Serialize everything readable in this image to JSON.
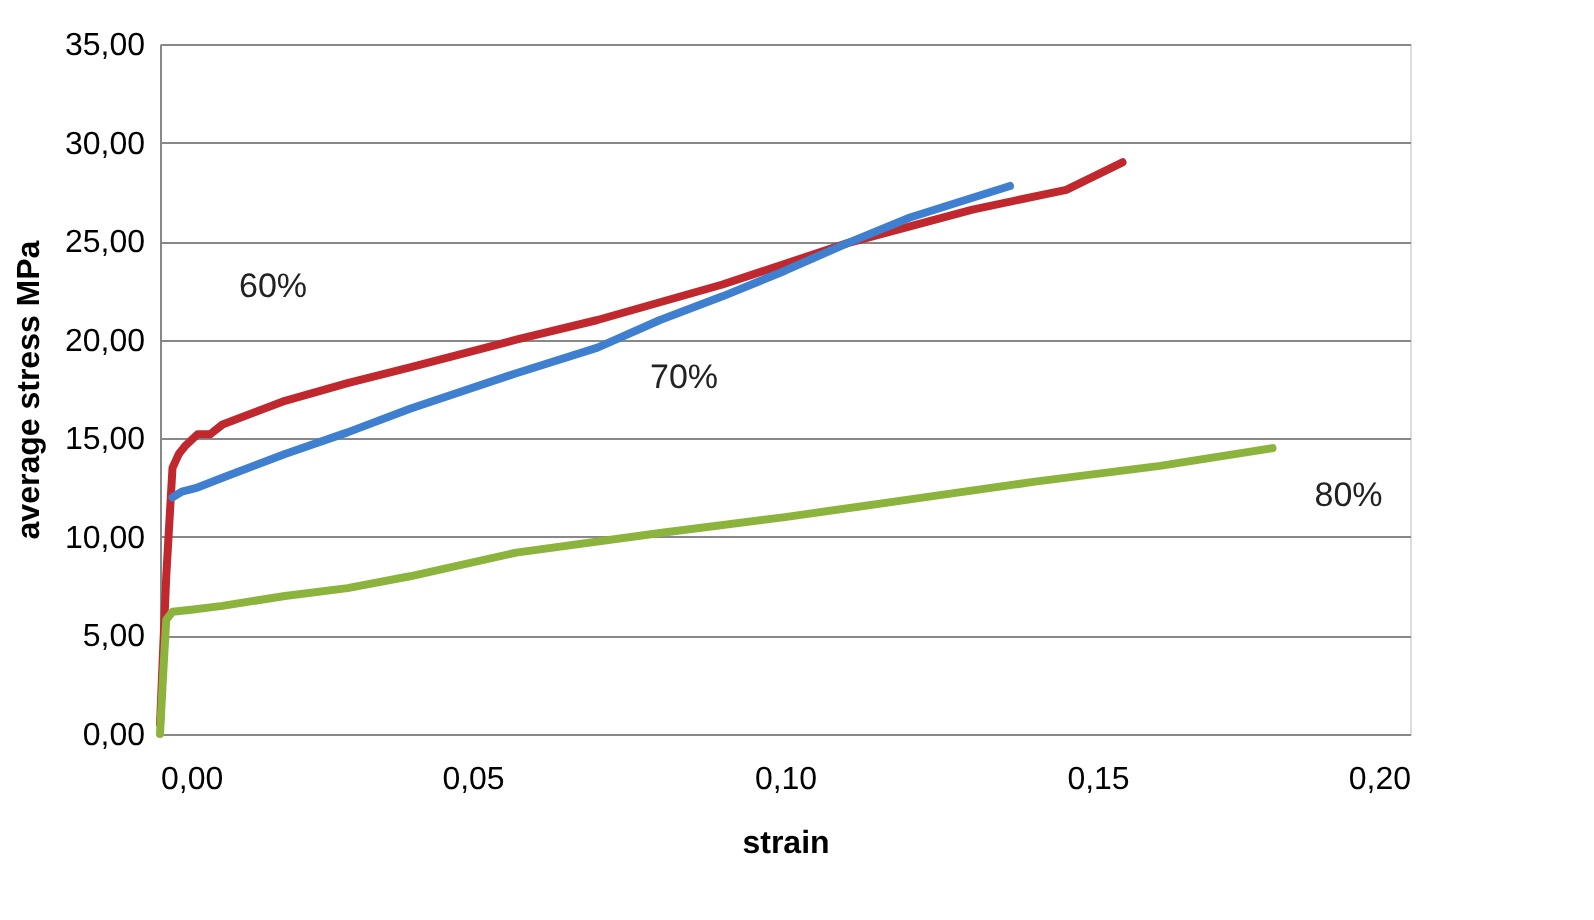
{
  "chart_data": {
    "type": "line",
    "xlabel": "strain",
    "ylabel": "average stress   MPa",
    "xlim": [
      0,
      0.2
    ],
    "ylim": [
      0,
      35
    ],
    "xticks": [
      {
        "value": 0,
        "label": "0,00"
      },
      {
        "value": 0.05,
        "label": "0,05"
      },
      {
        "value": 0.1,
        "label": "0,10"
      },
      {
        "value": 0.15,
        "label": "0,15"
      },
      {
        "value": 0.2,
        "label": "0,20"
      }
    ],
    "yticks": [
      {
        "value": 0,
        "label": "0,00"
      },
      {
        "value": 5,
        "label": "5,00"
      },
      {
        "value": 10,
        "label": "10,00"
      },
      {
        "value": 15,
        "label": "15,00"
      },
      {
        "value": 20,
        "label": "20,00"
      },
      {
        "value": 25,
        "label": "25,00"
      },
      {
        "value": 30,
        "label": "30,00"
      },
      {
        "value": 35,
        "label": "35,00"
      }
    ],
    "grid": "y",
    "marker": "none",
    "line_style": "solid",
    "legend": false,
    "series": [
      {
        "name": "60%",
        "color": "#c0282d",
        "x": [
          0,
          0.001,
          0.002,
          0.003,
          0.004,
          0.006,
          0.008,
          0.01,
          0.02,
          0.03,
          0.04,
          0.057,
          0.07,
          0.09,
          0.11,
          0.13,
          0.145,
          0.154
        ],
        "values": [
          0.5,
          8,
          13.5,
          14.2,
          14.6,
          15.2,
          15.2,
          15.7,
          16.9,
          17.8,
          18.6,
          20.0,
          21.0,
          22.8,
          24.9,
          26.6,
          27.6,
          29.0
        ]
      },
      {
        "name": "70%",
        "color": "#3f7fcf",
        "x": [
          0.002,
          0.0035,
          0.006,
          0.01,
          0.02,
          0.03,
          0.04,
          0.057,
          0.07,
          0.08,
          0.09,
          0.1,
          0.11,
          0.12,
          0.13,
          0.136
        ],
        "values": [
          12.0,
          12.3,
          12.5,
          13.0,
          14.2,
          15.3,
          16.5,
          18.3,
          19.6,
          21.0,
          22.2,
          23.5,
          24.9,
          26.2,
          27.2,
          27.8
        ]
      },
      {
        "name": "80%",
        "color": "#8cb43c",
        "x": [
          0,
          0.0005,
          0.001,
          0.002,
          0.005,
          0.01,
          0.02,
          0.03,
          0.04,
          0.057,
          0.08,
          0.1,
          0.12,
          0.14,
          0.16,
          0.178
        ],
        "values": [
          0,
          3,
          5.8,
          6.2,
          6.3,
          6.5,
          7.0,
          7.4,
          8.0,
          9.2,
          10.2,
          11.0,
          11.9,
          12.8,
          13.6,
          14.5
        ]
      }
    ]
  }
}
